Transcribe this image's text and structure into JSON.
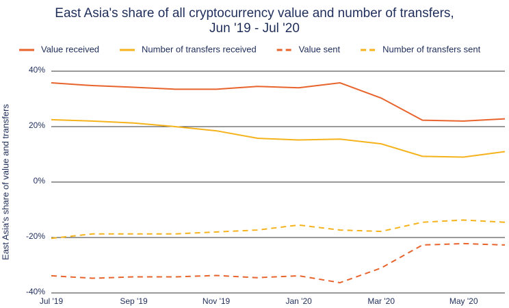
{
  "chart_data": {
    "type": "line",
    "title": [
      "East Asia's share of all cryptocurrency value and number of transfers,",
      "Jun '19 - Jul '20"
    ],
    "y_label": "East Asia's share of value and transfers",
    "categories": [
      "Jul '19",
      null,
      "Sep '19",
      null,
      "Nov '19",
      null,
      "Jan '20",
      null,
      "Mar '20",
      null,
      "May '20",
      null
    ],
    "series": [
      {
        "name": "Value received",
        "color": "#e8632b",
        "style": "solid",
        "values": [
          35.8,
          34.8,
          34.2,
          33.5,
          33.5,
          34.5,
          34.0,
          35.8,
          30.3,
          22.3,
          22.0,
          22.8
        ]
      },
      {
        "name": "Number of transfers received",
        "color": "#f5b21b",
        "style": "solid",
        "values": [
          22.5,
          22.0,
          21.3,
          20.0,
          18.5,
          15.8,
          15.2,
          15.5,
          13.8,
          9.3,
          9.0,
          11.0
        ]
      },
      {
        "name": "Value sent",
        "color": "#e8632b",
        "style": "dashed",
        "values": [
          -33.8,
          -34.7,
          -34.2,
          -34.2,
          -33.7,
          -34.5,
          -33.8,
          -36.3,
          -31.0,
          -22.7,
          -22.2,
          -22.7
        ]
      },
      {
        "name": "Number of transfers sent",
        "color": "#f5b21b",
        "style": "dashed",
        "values": [
          -20.3,
          -18.7,
          -18.7,
          -18.7,
          -18.0,
          -17.3,
          -15.5,
          -17.3,
          -17.8,
          -14.5,
          -13.7,
          -14.5
        ]
      }
    ],
    "ylim": [
      -40,
      40
    ],
    "yticks": [
      {
        "value": -40,
        "label": "-40%"
      },
      {
        "value": -20,
        "label": "-20%"
      },
      {
        "value": 0,
        "label": "0%"
      },
      {
        "value": 20,
        "label": "20%"
      },
      {
        "value": 40,
        "label": "40%"
      }
    ],
    "grid": true,
    "legend": "top"
  }
}
